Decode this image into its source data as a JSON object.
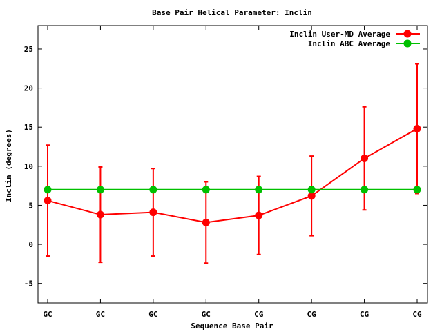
{
  "chart_data": {
    "type": "line",
    "title": "Base Pair Helical Parameter: Inclin",
    "xlabel": "Sequence Base Pair",
    "ylabel": "Inclin (degrees)",
    "categories": [
      "GC",
      "GC",
      "GC",
      "GC",
      "CG",
      "CG",
      "CG",
      "CG"
    ],
    "ylim": [
      -7.5,
      28.0
    ],
    "yticks": [
      -5,
      0,
      5,
      10,
      15,
      20,
      25
    ],
    "ytick_labels": [
      "-5",
      "0",
      "5",
      "10",
      "15",
      "20",
      "25"
    ],
    "grid": false,
    "legend_position": "top-right",
    "series": [
      {
        "name": "Inclin User-MD Average",
        "color": "#ff0000",
        "values": [
          5.6,
          3.8,
          4.1,
          2.8,
          3.7,
          6.2,
          11.0,
          14.8
        ],
        "error": [
          7.1,
          6.1,
          5.6,
          5.2,
          5.0,
          5.1,
          6.6,
          8.3
        ]
      },
      {
        "name": "Inclin ABC Average",
        "color": "#00c000",
        "values": [
          7.0,
          7.0,
          7.0,
          7.0,
          7.0,
          7.0,
          7.0,
          7.0
        ],
        "error": [
          0.3,
          0.3,
          0.3,
          0.3,
          0.3,
          0.3,
          0.3,
          0.3
        ]
      }
    ]
  }
}
